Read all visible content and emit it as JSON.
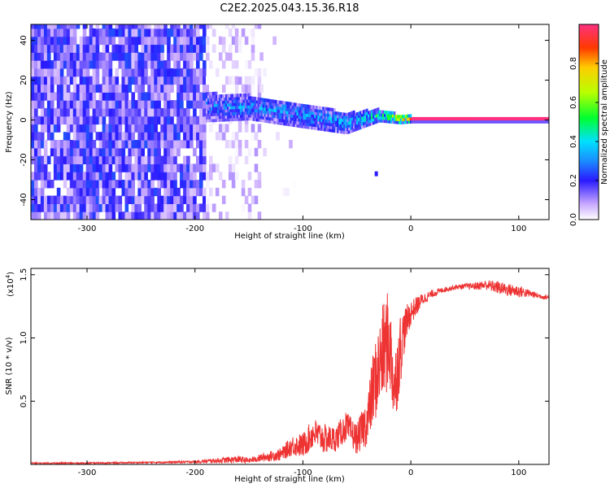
{
  "page_title": "C2E2.2025.043.15.36.R18",
  "colorbar": {
    "label": "Normalized spectral amplitude",
    "ticks": [
      {
        "v": 0.0,
        "t": "0.0"
      },
      {
        "v": 0.2,
        "t": "0.2"
      },
      {
        "v": 0.4,
        "t": "0.4"
      },
      {
        "v": 0.6,
        "t": "0.6"
      },
      {
        "v": 0.8,
        "t": "0.8"
      }
    ],
    "range": [
      0,
      1
    ]
  },
  "chart_data": [
    {
      "type": "heatmap",
      "xlabel": "Height of straight line (km)",
      "ylabel": "Frequency (Hz)",
      "xlim": [
        -352,
        128
      ],
      "ylim": [
        -50,
        48
      ],
      "xticks": [
        {
          "v": -300,
          "t": "-300"
        },
        {
          "v": -200,
          "t": "-200"
        },
        {
          "v": -100,
          "t": "-100"
        },
        {
          "v": 0,
          "t": "0"
        },
        {
          "v": 100,
          "t": "100"
        }
      ],
      "yticks": [
        {
          "v": -40,
          "t": "-40"
        },
        {
          "v": -20,
          "t": "-20"
        },
        {
          "v": 0,
          "t": "0"
        },
        {
          "v": 20,
          "t": "20"
        },
        {
          "v": 40,
          "t": "40"
        }
      ],
      "regions": [
        {
          "x_from": -352,
          "x_to": -190,
          "kind": "noise",
          "density": 0.9,
          "amplitude": [
            0.05,
            0.25
          ]
        },
        {
          "x_from": -190,
          "x_to": -140,
          "kind": "noise",
          "density": 0.35,
          "amplitude": [
            0.0,
            0.1
          ]
        },
        {
          "x_from": -140,
          "x_to": -100,
          "kind": "noise",
          "density": 0.04,
          "amplitude": [
            0.0,
            0.08
          ]
        }
      ],
      "signal_band": {
        "points": [
          {
            "x": -190,
            "center": 6,
            "half_width": 7,
            "amplitude": 0.3
          },
          {
            "x": -150,
            "center": 6,
            "half_width": 6,
            "amplitude": 0.35
          },
          {
            "x": -100,
            "center": 2,
            "half_width": 6,
            "amplitude": 0.35
          },
          {
            "x": -60,
            "center": -2,
            "half_width": 5,
            "amplitude": 0.38
          },
          {
            "x": -30,
            "center": 2,
            "half_width": 3,
            "amplitude": 0.5
          },
          {
            "x": -10,
            "center": 0,
            "half_width": 2,
            "amplitude": 0.8
          },
          {
            "x": 0,
            "center": 0,
            "half_width": 1.5,
            "amplitude": 1.0
          },
          {
            "x": 128,
            "center": 0,
            "half_width": 1.5,
            "amplitude": 1.0
          }
        ],
        "outlier": {
          "x": -32,
          "y": -27,
          "amplitude": 0.2
        }
      }
    },
    {
      "type": "line",
      "xlabel": "Height of straight line (km)",
      "ylabel": "SNR (10 * v/v)",
      "multiplier_label": "(x10",
      "multiplier_exp": "4",
      "multiplier_close": ")",
      "xlim": [
        -352,
        128
      ],
      "ylim": [
        0,
        1.55
      ],
      "xticks": [
        {
          "v": -300,
          "t": "-300"
        },
        {
          "v": -200,
          "t": "-200"
        },
        {
          "v": -100,
          "t": "-100"
        },
        {
          "v": 0,
          "t": "0"
        },
        {
          "v": 100,
          "t": "100"
        }
      ],
      "yticks": [
        {
          "v": 0.5,
          "t": "0.5"
        },
        {
          "v": 1.0,
          "t": "1.0"
        },
        {
          "v": 1.5,
          "t": "1.5"
        }
      ],
      "color": "#ee3333",
      "x": [
        -352,
        -300,
        -250,
        -200,
        -180,
        -160,
        -150,
        -140,
        -120,
        -110,
        -100,
        -90,
        -80,
        -70,
        -60,
        -50,
        -40,
        -35,
        -30,
        -25,
        -20,
        -18,
        -15,
        -10,
        -5,
        0,
        10,
        20,
        30,
        40,
        50,
        60,
        70,
        80,
        90,
        100,
        110,
        120,
        128
      ],
      "values": [
        0.01,
        0.01,
        0.015,
        0.02,
        0.03,
        0.04,
        0.03,
        0.05,
        0.08,
        0.15,
        0.15,
        0.25,
        0.2,
        0.2,
        0.3,
        0.2,
        0.35,
        0.6,
        0.75,
        0.9,
        1.0,
        0.8,
        0.6,
        0.9,
        1.1,
        1.2,
        1.3,
        1.35,
        1.38,
        1.4,
        1.41,
        1.41,
        1.42,
        1.4,
        1.38,
        1.37,
        1.35,
        1.33,
        1.32
      ],
      "noise_amplitude": [
        0.005,
        0.005,
        0.006,
        0.01,
        0.02,
        0.03,
        0.02,
        0.03,
        0.05,
        0.08,
        0.1,
        0.12,
        0.12,
        0.1,
        0.12,
        0.12,
        0.2,
        0.3,
        0.35,
        0.4,
        0.4,
        0.35,
        0.3,
        0.3,
        0.15,
        0.1,
        0.05,
        0.03,
        0.02,
        0.02,
        0.02,
        0.03,
        0.04,
        0.05,
        0.05,
        0.05,
        0.03,
        0.02,
        0.02
      ]
    }
  ]
}
